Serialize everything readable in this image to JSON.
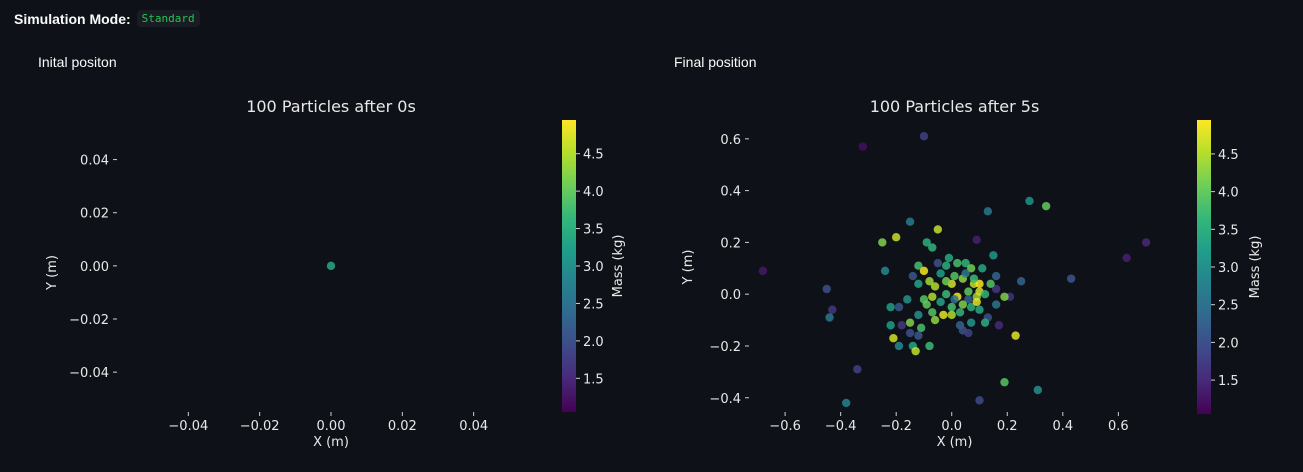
{
  "header": {
    "mode_label": "Simulation Mode:",
    "mode_value": "Standard"
  },
  "columns": {
    "initial_label": "Inital positon",
    "final_label": "Final position"
  },
  "chart_data": [
    {
      "type": "scatter",
      "title": "100 Particles after 0s",
      "xlabel": "X (m)",
      "ylabel": "Y (m)",
      "xlim": [
        -0.06,
        0.06
      ],
      "ylim": [
        -0.055,
        0.05
      ],
      "xticks": [
        -0.04,
        -0.02,
        0.0,
        0.02,
        0.04
      ],
      "xticklabels": [
        "−0.04",
        "−0.02",
        "0.00",
        "0.02",
        "0.04"
      ],
      "yticks": [
        0.04,
        0.02,
        0.0,
        -0.02,
        -0.04
      ],
      "yticklabels": [
        "0.04",
        "0.02",
        "0.00",
        "−0.02",
        "−0.04"
      ],
      "colorbar": {
        "label": "Mass (kg)",
        "range": [
          1.05,
          4.95
        ],
        "ticks": [
          4.5,
          4.0,
          3.5,
          3.0,
          2.5,
          2.0,
          1.5
        ],
        "ticklabels": [
          "4.5",
          "4.0",
          "3.5",
          "3.0",
          "2.5",
          "2.0",
          "1.5"
        ]
      },
      "points": [
        {
          "x": 0.0,
          "y": 0.0,
          "mass": 3.4
        }
      ]
    },
    {
      "type": "scatter",
      "title": "100 Particles after 5s",
      "xlabel": "X (m)",
      "ylabel": "Y (m)",
      "xlim": [
        -0.73,
        0.75
      ],
      "ylim": [
        -0.455,
        0.665
      ],
      "xticks": [
        -0.6,
        -0.4,
        -0.2,
        0.0,
        0.2,
        0.4,
        0.6
      ],
      "xticklabels": [
        "−0.6",
        "−0.4",
        "−0.2",
        "0.0",
        "0.2",
        "0.4",
        "0.6"
      ],
      "yticks": [
        0.6,
        0.4,
        0.2,
        0.0,
        -0.2,
        -0.4
      ],
      "yticklabels": [
        "0.6",
        "0.4",
        "0.2",
        "0.0",
        "−0.2",
        "−0.4"
      ],
      "colorbar": {
        "label": "Mass (kg)",
        "range": [
          1.05,
          4.95
        ],
        "ticks": [
          4.5,
          4.0,
          3.5,
          3.0,
          2.5,
          2.0,
          1.5
        ],
        "ticklabels": [
          "4.5",
          "4.0",
          "3.5",
          "3.0",
          "2.5",
          "2.0",
          "1.5"
        ]
      },
      "points": [
        {
          "x": -0.1,
          "y": 0.61,
          "mass": 1.8
        },
        {
          "x": -0.32,
          "y": 0.57,
          "mass": 1.2
        },
        {
          "x": 0.28,
          "y": 0.36,
          "mass": 3.0
        },
        {
          "x": 0.34,
          "y": 0.34,
          "mass": 4.0
        },
        {
          "x": 0.13,
          "y": 0.32,
          "mass": 2.6
        },
        {
          "x": -0.15,
          "y": 0.28,
          "mass": 2.7
        },
        {
          "x": -0.05,
          "y": 0.25,
          "mass": 4.6
        },
        {
          "x": 0.09,
          "y": 0.21,
          "mass": 1.4
        },
        {
          "x": 0.7,
          "y": 0.2,
          "mass": 1.5
        },
        {
          "x": -0.2,
          "y": 0.22,
          "mass": 4.6
        },
        {
          "x": -0.25,
          "y": 0.2,
          "mass": 4.2
        },
        {
          "x": -0.09,
          "y": 0.2,
          "mass": 3.5
        },
        {
          "x": -0.07,
          "y": 0.18,
          "mass": 3.6
        },
        {
          "x": 0.15,
          "y": 0.15,
          "mass": 3.1
        },
        {
          "x": 0.63,
          "y": 0.14,
          "mass": 1.4
        },
        {
          "x": -0.68,
          "y": 0.09,
          "mass": 1.3
        },
        {
          "x": -0.24,
          "y": 0.09,
          "mass": 2.9
        },
        {
          "x": -0.12,
          "y": 0.11,
          "mass": 3.8
        },
        {
          "x": -0.05,
          "y": 0.12,
          "mass": 2.0
        },
        {
          "x": -0.02,
          "y": 0.11,
          "mass": 3.5
        },
        {
          "x": 0.02,
          "y": 0.12,
          "mass": 3.8
        },
        {
          "x": 0.05,
          "y": 0.12,
          "mass": 3.6
        },
        {
          "x": 0.07,
          "y": 0.1,
          "mass": 4.1
        },
        {
          "x": 0.11,
          "y": 0.1,
          "mass": 3.4
        },
        {
          "x": 0.16,
          "y": 0.07,
          "mass": 2.3
        },
        {
          "x": -0.14,
          "y": 0.07,
          "mass": 2.1
        },
        {
          "x": -0.1,
          "y": 0.09,
          "mass": 4.9
        },
        {
          "x": -0.08,
          "y": 0.05,
          "mass": 4.4
        },
        {
          "x": -0.04,
          "y": 0.08,
          "mass": 3.2
        },
        {
          "x": 0.01,
          "y": 0.07,
          "mass": 3.9
        },
        {
          "x": 0.04,
          "y": 0.06,
          "mass": 4.3
        },
        {
          "x": 0.08,
          "y": 0.04,
          "mass": 4.6
        },
        {
          "x": 0.43,
          "y": 0.06,
          "mass": 2.1
        },
        {
          "x": 0.25,
          "y": 0.05,
          "mass": 2.3
        },
        {
          "x": -0.45,
          "y": 0.02,
          "mass": 2.0
        },
        {
          "x": -0.12,
          "y": 0.04,
          "mass": 3.3
        },
        {
          "x": -0.06,
          "y": 0.03,
          "mass": 4.5
        },
        {
          "x": 0.0,
          "y": 0.04,
          "mass": 4.7
        },
        {
          "x": 0.06,
          "y": 0.01,
          "mass": 4.0
        },
        {
          "x": 0.1,
          "y": 0.04,
          "mass": 4.9
        },
        {
          "x": 0.16,
          "y": 0.02,
          "mass": 1.7
        },
        {
          "x": 0.21,
          "y": -0.01,
          "mass": 1.6
        },
        {
          "x": 0.19,
          "y": -0.01,
          "mass": 4.2
        },
        {
          "x": -0.1,
          "y": -0.02,
          "mass": 3.9
        },
        {
          "x": -0.07,
          "y": -0.01,
          "mass": 4.5
        },
        {
          "x": -0.02,
          "y": 0.0,
          "mass": 3.7
        },
        {
          "x": 0.02,
          "y": -0.01,
          "mass": 4.9
        },
        {
          "x": 0.06,
          "y": -0.02,
          "mass": 2.3
        },
        {
          "x": 0.09,
          "y": -0.01,
          "mass": 4.3
        },
        {
          "x": 0.1,
          "y": 0.01,
          "mass": 4.7
        },
        {
          "x": -0.22,
          "y": -0.05,
          "mass": 3.2
        },
        {
          "x": -0.19,
          "y": -0.05,
          "mass": 2.1
        },
        {
          "x": -0.09,
          "y": -0.04,
          "mass": 4.0
        },
        {
          "x": -0.04,
          "y": -0.03,
          "mass": 3.3
        },
        {
          "x": 0.0,
          "y": -0.05,
          "mass": 3.8
        },
        {
          "x": 0.04,
          "y": -0.04,
          "mass": 4.2
        },
        {
          "x": 0.07,
          "y": -0.05,
          "mass": 3.5
        },
        {
          "x": -0.43,
          "y": -0.06,
          "mass": 1.7
        },
        {
          "x": -0.44,
          "y": -0.09,
          "mass": 2.6
        },
        {
          "x": -0.12,
          "y": -0.08,
          "mass": 3.0
        },
        {
          "x": -0.07,
          "y": -0.07,
          "mass": 3.9
        },
        {
          "x": -0.03,
          "y": -0.08,
          "mass": 4.8
        },
        {
          "x": 0.0,
          "y": -0.08,
          "mass": 4.5
        },
        {
          "x": 0.03,
          "y": -0.07,
          "mass": 3.6
        },
        {
          "x": 0.1,
          "y": -0.06,
          "mass": 3.4
        },
        {
          "x": 0.13,
          "y": -0.09,
          "mass": 2.0
        },
        {
          "x": -0.22,
          "y": -0.12,
          "mass": 3.2
        },
        {
          "x": -0.18,
          "y": -0.12,
          "mass": 1.7
        },
        {
          "x": -0.15,
          "y": -0.11,
          "mass": 4.2
        },
        {
          "x": -0.11,
          "y": -0.13,
          "mass": 3.8
        },
        {
          "x": 0.03,
          "y": -0.12,
          "mass": 2.3
        },
        {
          "x": 0.07,
          "y": -0.11,
          "mass": 3.1
        },
        {
          "x": 0.12,
          "y": -0.11,
          "mass": 3.5
        },
        {
          "x": 0.17,
          "y": -0.12,
          "mass": 1.5
        },
        {
          "x": -0.15,
          "y": -0.15,
          "mass": 2.0
        },
        {
          "x": -0.12,
          "y": -0.16,
          "mass": 2.1
        },
        {
          "x": 0.04,
          "y": -0.14,
          "mass": 2.0
        },
        {
          "x": 0.06,
          "y": -0.15,
          "mass": 1.8
        },
        {
          "x": -0.21,
          "y": -0.17,
          "mass": 4.7
        },
        {
          "x": -0.19,
          "y": -0.2,
          "mass": 2.9
        },
        {
          "x": -0.14,
          "y": -0.2,
          "mass": 3.3
        },
        {
          "x": 0.23,
          "y": -0.16,
          "mass": 4.8
        },
        {
          "x": -0.13,
          "y": -0.22,
          "mass": 4.6
        },
        {
          "x": -0.08,
          "y": -0.2,
          "mass": 3.7
        },
        {
          "x": -0.34,
          "y": -0.29,
          "mass": 1.8
        },
        {
          "x": 0.19,
          "y": -0.34,
          "mass": 3.9
        },
        {
          "x": 0.31,
          "y": -0.37,
          "mass": 3.0
        },
        {
          "x": 0.1,
          "y": -0.41,
          "mass": 1.9
        },
        {
          "x": -0.38,
          "y": -0.42,
          "mass": 2.8
        },
        {
          "x": 0.12,
          "y": 0.0,
          "mass": 3.6
        },
        {
          "x": -0.02,
          "y": 0.05,
          "mass": 4.1
        },
        {
          "x": 0.14,
          "y": 0.04,
          "mass": 3.9
        },
        {
          "x": 0.05,
          "y": 0.08,
          "mass": 2.7
        },
        {
          "x": -0.16,
          "y": -0.02,
          "mass": 3.0
        },
        {
          "x": 0.08,
          "y": 0.06,
          "mass": 3.7
        },
        {
          "x": 0.01,
          "y": -0.02,
          "mass": 2.5
        },
        {
          "x": -0.06,
          "y": -0.1,
          "mass": 4.3
        },
        {
          "x": 0.16,
          "y": -0.04,
          "mass": 2.6
        },
        {
          "x": -0.01,
          "y": 0.14,
          "mass": 3.4
        },
        {
          "x": 0.09,
          "y": -0.03,
          "mass": 4.8
        }
      ]
    }
  ]
}
